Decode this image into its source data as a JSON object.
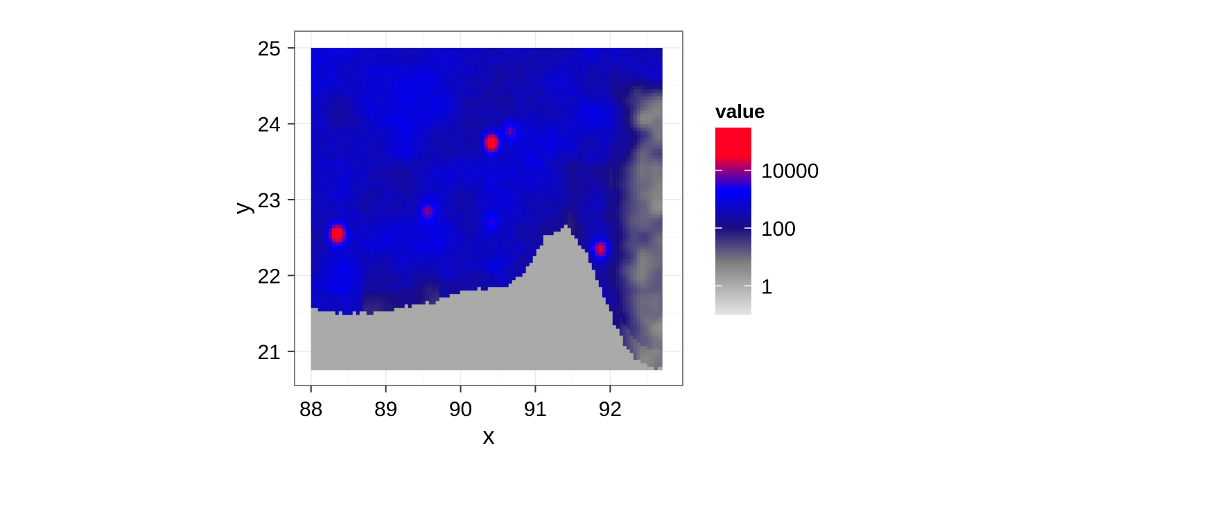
{
  "chart_data": {
    "type": "heatmap",
    "xlabel": "x",
    "ylabel": "y",
    "xlim": [
      87.78,
      92.97
    ],
    "ylim": [
      20.55,
      25.22
    ],
    "data_extent": {
      "x": [
        88.0,
        92.7
      ],
      "y": [
        20.75,
        25.0
      ]
    },
    "x_ticks": [
      "88",
      "89",
      "90",
      "91",
      "92"
    ],
    "y_ticks": [
      "21",
      "22",
      "23",
      "24",
      "25"
    ],
    "grid": true,
    "legend": {
      "title": "value",
      "position": "right",
      "scale": "log10",
      "range": [
        0.1,
        300000
      ],
      "breaks": [
        "1",
        "100",
        "10000"
      ],
      "gradient_colors": [
        "#e6e6e6",
        "#7f7f7f",
        "#1a0d80",
        "#0000ff",
        "#ff0022"
      ]
    },
    "missing_color": "#aaaaaa",
    "coastline_lon": [
      88.0,
      88.5,
      88.8,
      89.2,
      89.6,
      90.0,
      90.4,
      90.7,
      90.9,
      91.15,
      91.4,
      91.6,
      91.75,
      91.85,
      92.0,
      92.15,
      92.3,
      92.5,
      92.7
    ],
    "coastline_lat": [
      21.55,
      21.5,
      21.5,
      21.58,
      21.65,
      21.8,
      21.82,
      21.9,
      22.15,
      22.55,
      22.65,
      22.4,
      22.1,
      21.8,
      21.45,
      21.15,
      20.9,
      20.78,
      20.78
    ],
    "hotspots": [
      {
        "x": 88.35,
        "y": 22.55,
        "value": 150000
      },
      {
        "x": 90.4,
        "y": 23.75,
        "value": 120000
      },
      {
        "x": 91.85,
        "y": 22.35,
        "value": 25000
      },
      {
        "x": 89.55,
        "y": 22.85,
        "value": 8000
      },
      {
        "x": 90.65,
        "y": 23.9,
        "value": 6000
      },
      {
        "x": 90.4,
        "y": 22.7,
        "value": 3000
      }
    ]
  }
}
